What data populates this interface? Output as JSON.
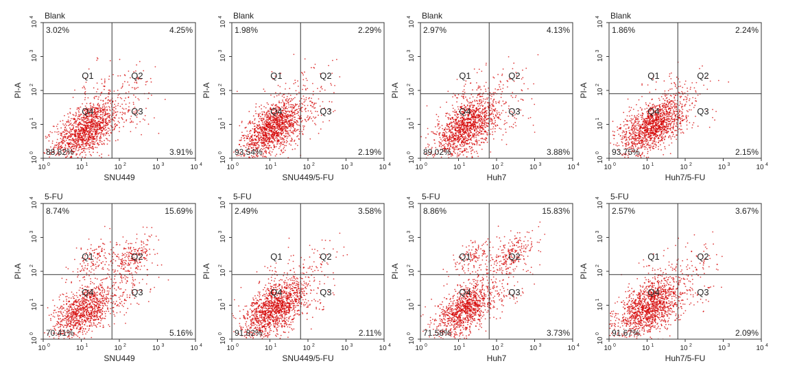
{
  "chart_data": [
    {
      "type": "scatter",
      "condition": "Blank",
      "xlabel": "SNU449",
      "ylabel": "PI-A",
      "xlim": [
        1,
        10000
      ],
      "ylim": [
        1,
        10000
      ],
      "log": true,
      "quadrant_labels": [
        "Q1",
        "Q2",
        "Q3",
        "Q4"
      ],
      "percents": {
        "Q1": "3.02%",
        "Q2": "4.25%",
        "Q3": "3.91%",
        "Q4": "88.82%"
      },
      "gate": [
        64,
        80
      ],
      "populations": [
        {
          "cx": 14,
          "cy": 7,
          "sx": 0.42,
          "sy": 0.43,
          "weight": 0.89
        },
        {
          "cx": 22,
          "cy": 120,
          "sx": 0.4,
          "sy": 0.4,
          "weight": 0.03
        },
        {
          "cx": 170,
          "cy": 120,
          "sx": 0.4,
          "sy": 0.4,
          "weight": 0.04
        },
        {
          "cx": 160,
          "cy": 15,
          "sx": 0.4,
          "sy": 0.35,
          "weight": 0.04
        }
      ]
    },
    {
      "type": "scatter",
      "condition": "Blank",
      "xlabel": "SNU449/5-FU",
      "ylabel": "PI-A",
      "xlim": [
        1,
        10000
      ],
      "ylim": [
        1,
        10000
      ],
      "log": true,
      "quadrant_labels": [
        "Q1",
        "Q2",
        "Q3",
        "Q4"
      ],
      "percents": {
        "Q1": "1.98%",
        "Q2": "2.29%",
        "Q3": "2.19%",
        "Q4": "93.54%"
      },
      "gate": [
        64,
        80
      ],
      "populations": [
        {
          "cx": 13,
          "cy": 8,
          "sx": 0.42,
          "sy": 0.42,
          "weight": 0.94
        },
        {
          "cx": 22,
          "cy": 120,
          "sx": 0.4,
          "sy": 0.4,
          "weight": 0.02
        },
        {
          "cx": 170,
          "cy": 120,
          "sx": 0.4,
          "sy": 0.4,
          "weight": 0.02
        },
        {
          "cx": 160,
          "cy": 15,
          "sx": 0.4,
          "sy": 0.35,
          "weight": 0.02
        }
      ]
    },
    {
      "type": "scatter",
      "condition": "Blank",
      "xlabel": "Huh7",
      "ylabel": "PI-A",
      "xlim": [
        1,
        10000
      ],
      "ylim": [
        1,
        10000
      ],
      "log": true,
      "quadrant_labels": [
        "Q1",
        "Q2",
        "Q3",
        "Q4"
      ],
      "percents": {
        "Q1": "2.97%",
        "Q2": "4.13%",
        "Q3": "3.88%",
        "Q4": "89.02%"
      },
      "gate": [
        64,
        80
      ],
      "populations": [
        {
          "cx": 16,
          "cy": 8,
          "sx": 0.4,
          "sy": 0.45,
          "weight": 0.89
        },
        {
          "cx": 22,
          "cy": 120,
          "sx": 0.4,
          "sy": 0.4,
          "weight": 0.03
        },
        {
          "cx": 170,
          "cy": 120,
          "sx": 0.4,
          "sy": 0.4,
          "weight": 0.04
        },
        {
          "cx": 160,
          "cy": 15,
          "sx": 0.4,
          "sy": 0.35,
          "weight": 0.04
        }
      ]
    },
    {
      "type": "scatter",
      "condition": "Blank",
      "xlabel": "Huh7/5-FU",
      "ylabel": "PI-A",
      "xlim": [
        1,
        10000
      ],
      "ylim": [
        1,
        10000
      ],
      "log": true,
      "quadrant_labels": [
        "Q1",
        "Q2",
        "Q3",
        "Q4"
      ],
      "percents": {
        "Q1": "1.86%",
        "Q2": "2.24%",
        "Q3": "2.15%",
        "Q4": "93.75%"
      },
      "gate": [
        64,
        80
      ],
      "populations": [
        {
          "cx": 14,
          "cy": 9,
          "sx": 0.42,
          "sy": 0.42,
          "weight": 0.94
        },
        {
          "cx": 22,
          "cy": 120,
          "sx": 0.4,
          "sy": 0.4,
          "weight": 0.02
        },
        {
          "cx": 170,
          "cy": 120,
          "sx": 0.4,
          "sy": 0.4,
          "weight": 0.02
        },
        {
          "cx": 160,
          "cy": 15,
          "sx": 0.4,
          "sy": 0.35,
          "weight": 0.02
        }
      ]
    },
    {
      "type": "scatter",
      "condition": "5-FU",
      "xlabel": "SNU449",
      "ylabel": "PI-A",
      "xlim": [
        1,
        10000
      ],
      "ylim": [
        1,
        10000
      ],
      "log": true,
      "quadrant_labels": [
        "Q1",
        "Q2",
        "Q3",
        "Q4"
      ],
      "percents": {
        "Q1": "8.74%",
        "Q2": "15.69%",
        "Q3": "5.16%",
        "Q4": "70.41%"
      },
      "gate": [
        64,
        80
      ],
      "populations": [
        {
          "cx": 12,
          "cy": 7,
          "sx": 0.4,
          "sy": 0.42,
          "weight": 0.7
        },
        {
          "cx": 22,
          "cy": 240,
          "sx": 0.3,
          "sy": 0.3,
          "weight": 0.09
        },
        {
          "cx": 240,
          "cy": 270,
          "sx": 0.3,
          "sy": 0.32,
          "weight": 0.16
        },
        {
          "cx": 170,
          "cy": 20,
          "sx": 0.4,
          "sy": 0.35,
          "weight": 0.05
        }
      ]
    },
    {
      "type": "scatter",
      "condition": "5-FU",
      "xlabel": "SNU449/5-FU",
      "ylabel": "PI-A",
      "xlim": [
        1,
        10000
      ],
      "ylim": [
        1,
        10000
      ],
      "log": true,
      "quadrant_labels": [
        "Q1",
        "Q2",
        "Q3",
        "Q4"
      ],
      "percents": {
        "Q1": "2.49%",
        "Q2": "3.58%",
        "Q3": "2.11%",
        "Q4": "91.82%"
      },
      "gate": [
        64,
        80
      ],
      "populations": [
        {
          "cx": 14,
          "cy": 8,
          "sx": 0.42,
          "sy": 0.42,
          "weight": 0.92
        },
        {
          "cx": 22,
          "cy": 130,
          "sx": 0.4,
          "sy": 0.4,
          "weight": 0.025
        },
        {
          "cx": 180,
          "cy": 140,
          "sx": 0.4,
          "sy": 0.4,
          "weight": 0.036
        },
        {
          "cx": 160,
          "cy": 15,
          "sx": 0.4,
          "sy": 0.35,
          "weight": 0.021
        }
      ]
    },
    {
      "type": "scatter",
      "condition": "5-FU",
      "xlabel": "Huh7",
      "ylabel": "PI-A",
      "xlim": [
        1,
        10000
      ],
      "ylim": [
        1,
        10000
      ],
      "log": true,
      "quadrant_labels": [
        "Q1",
        "Q2",
        "Q3",
        "Q4"
      ],
      "percents": {
        "Q1": "8.86%",
        "Q2": "15.83%",
        "Q3": "3.73%",
        "Q4": "71.58%"
      },
      "gate": [
        64,
        80
      ],
      "populations": [
        {
          "cx": 16,
          "cy": 8,
          "sx": 0.38,
          "sy": 0.42,
          "weight": 0.72
        },
        {
          "cx": 25,
          "cy": 260,
          "sx": 0.3,
          "sy": 0.3,
          "weight": 0.09
        },
        {
          "cx": 260,
          "cy": 290,
          "sx": 0.3,
          "sy": 0.3,
          "weight": 0.16
        },
        {
          "cx": 170,
          "cy": 20,
          "sx": 0.4,
          "sy": 0.35,
          "weight": 0.03
        }
      ]
    },
    {
      "type": "scatter",
      "condition": "5-FU",
      "xlabel": "Huh7/5-FU",
      "ylabel": "PI-A",
      "xlim": [
        1,
        10000
      ],
      "ylim": [
        1,
        10000
      ],
      "log": true,
      "quadrant_labels": [
        "Q1",
        "Q2",
        "Q3",
        "Q4"
      ],
      "percents": {
        "Q1": "2.57%",
        "Q2": "3.67%",
        "Q3": "2.09%",
        "Q4": "91.67%"
      },
      "gate": [
        64,
        80
      ],
      "populations": [
        {
          "cx": 12,
          "cy": 9,
          "sx": 0.44,
          "sy": 0.44,
          "weight": 0.92
        },
        {
          "cx": 22,
          "cy": 130,
          "sx": 0.4,
          "sy": 0.4,
          "weight": 0.025
        },
        {
          "cx": 190,
          "cy": 150,
          "sx": 0.4,
          "sy": 0.4,
          "weight": 0.036
        },
        {
          "cx": 160,
          "cy": 15,
          "sx": 0.4,
          "sy": 0.35,
          "weight": 0.021
        }
      ]
    }
  ],
  "ticks": {
    "labels": [
      "10",
      "10",
      "10",
      "10",
      "10"
    ],
    "exponents": [
      "0",
      "1",
      "2",
      "3",
      "4"
    ],
    "values": [
      1,
      10,
      100,
      1000,
      10000
    ]
  },
  "colors": {
    "dots": "#d40000",
    "axis": "#333333",
    "gate": "#333333",
    "text": "#222222"
  }
}
